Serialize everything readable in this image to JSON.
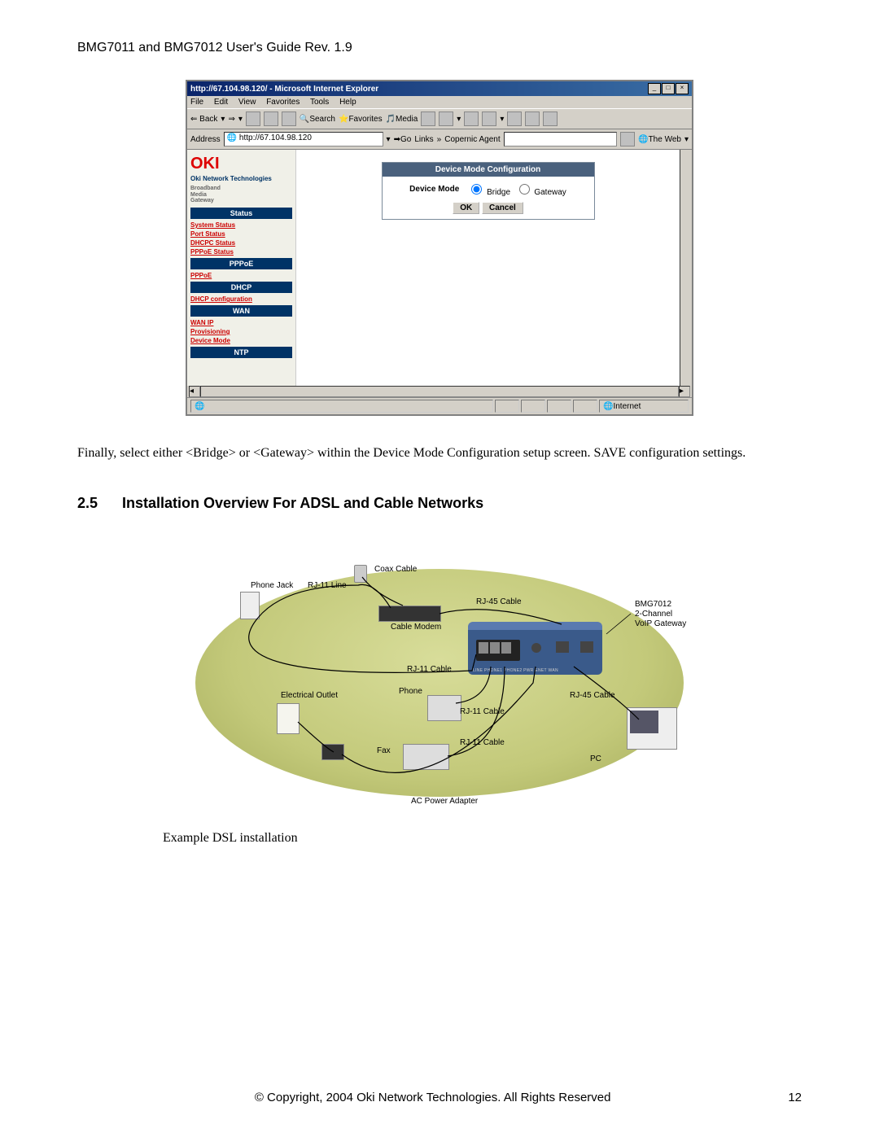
{
  "document": {
    "header": "BMG7011 and BMG7012 User's Guide Rev. 1.9",
    "body_text": "Finally, select either <Bridge> or <Gateway> within the Device Mode Configuration setup screen. SAVE configuration settings.",
    "section_number": "2.5",
    "section_title": "Installation Overview For ADSL and Cable Networks",
    "caption": "Example DSL installation",
    "copyright": "© Copyright, 2004 Oki Network Technologies. All Rights Reserved",
    "page_number": "12"
  },
  "browser": {
    "window_title": "http://67.104.98.120/ - Microsoft Internet Explorer",
    "menus": [
      "File",
      "Edit",
      "View",
      "Favorites",
      "Tools",
      "Help"
    ],
    "back_label": "Back",
    "search_label": "Search",
    "favorites_label": "Favorites",
    "media_label": "Media",
    "address_label": "Address",
    "address_value": "http://67.104.98.120",
    "go_label": "Go",
    "links_label": "Links",
    "copernic_label": "Copernic Agent",
    "theweb_label": "The Web",
    "status_internet": "Internet"
  },
  "sidebar": {
    "logo": "OKI",
    "logo_sub": "Oki Network Technologies",
    "gw_text": "Broadband\nMedia\nGateway",
    "sections": [
      {
        "type": "head",
        "label": "Status"
      },
      {
        "type": "link",
        "label": "System Status"
      },
      {
        "type": "link",
        "label": "Port Status"
      },
      {
        "type": "link",
        "label": "DHCPC Status"
      },
      {
        "type": "link",
        "label": "PPPoE Status"
      },
      {
        "type": "head",
        "label": "PPPoE"
      },
      {
        "type": "link",
        "label": "PPPoE"
      },
      {
        "type": "head",
        "label": "DHCP"
      },
      {
        "type": "link",
        "label": "DHCP configuration"
      },
      {
        "type": "head",
        "label": "WAN"
      },
      {
        "type": "link",
        "label": "WAN IP"
      },
      {
        "type": "link",
        "label": "Provisioning"
      },
      {
        "type": "link",
        "label": "Device Mode"
      },
      {
        "type": "head",
        "label": "NTP"
      }
    ]
  },
  "config_panel": {
    "title": "Device Mode Configuration",
    "label": "Device Mode",
    "option1": "Bridge",
    "option2": "Gateway",
    "ok": "OK",
    "cancel": "Cancel"
  },
  "diagram": {
    "labels": {
      "phone_jack": "Phone Jack",
      "rj11_line": "RJ-11 Line",
      "coax_cable": "Coax Cable",
      "cable_modem": "Cable Modem",
      "rj45_cable1": "RJ-45 Cable",
      "rj11_cable1": "RJ-11 Cable",
      "rj11_cable2": "RJ-11 Cable",
      "rj11_cable3": "RJ-11 Cable",
      "rj45_cable2": "RJ-45 Cable",
      "electrical_outlet": "Electrical Outlet",
      "phone": "Phone",
      "fax": "Fax",
      "ac_adapter": "AC Power Adapter",
      "pc": "PC",
      "product": "BMG7012\n2-Channel\nVoIP Gateway",
      "ports": "LINE PHONE1 PHONE2      PWR      ENET      WAN"
    },
    "colors": {
      "oval_light": "#d8dd9a",
      "oval_dark": "#a3aa58",
      "gateway_body": "#3a5a8a",
      "gateway_top": "#5a7ab0"
    }
  }
}
